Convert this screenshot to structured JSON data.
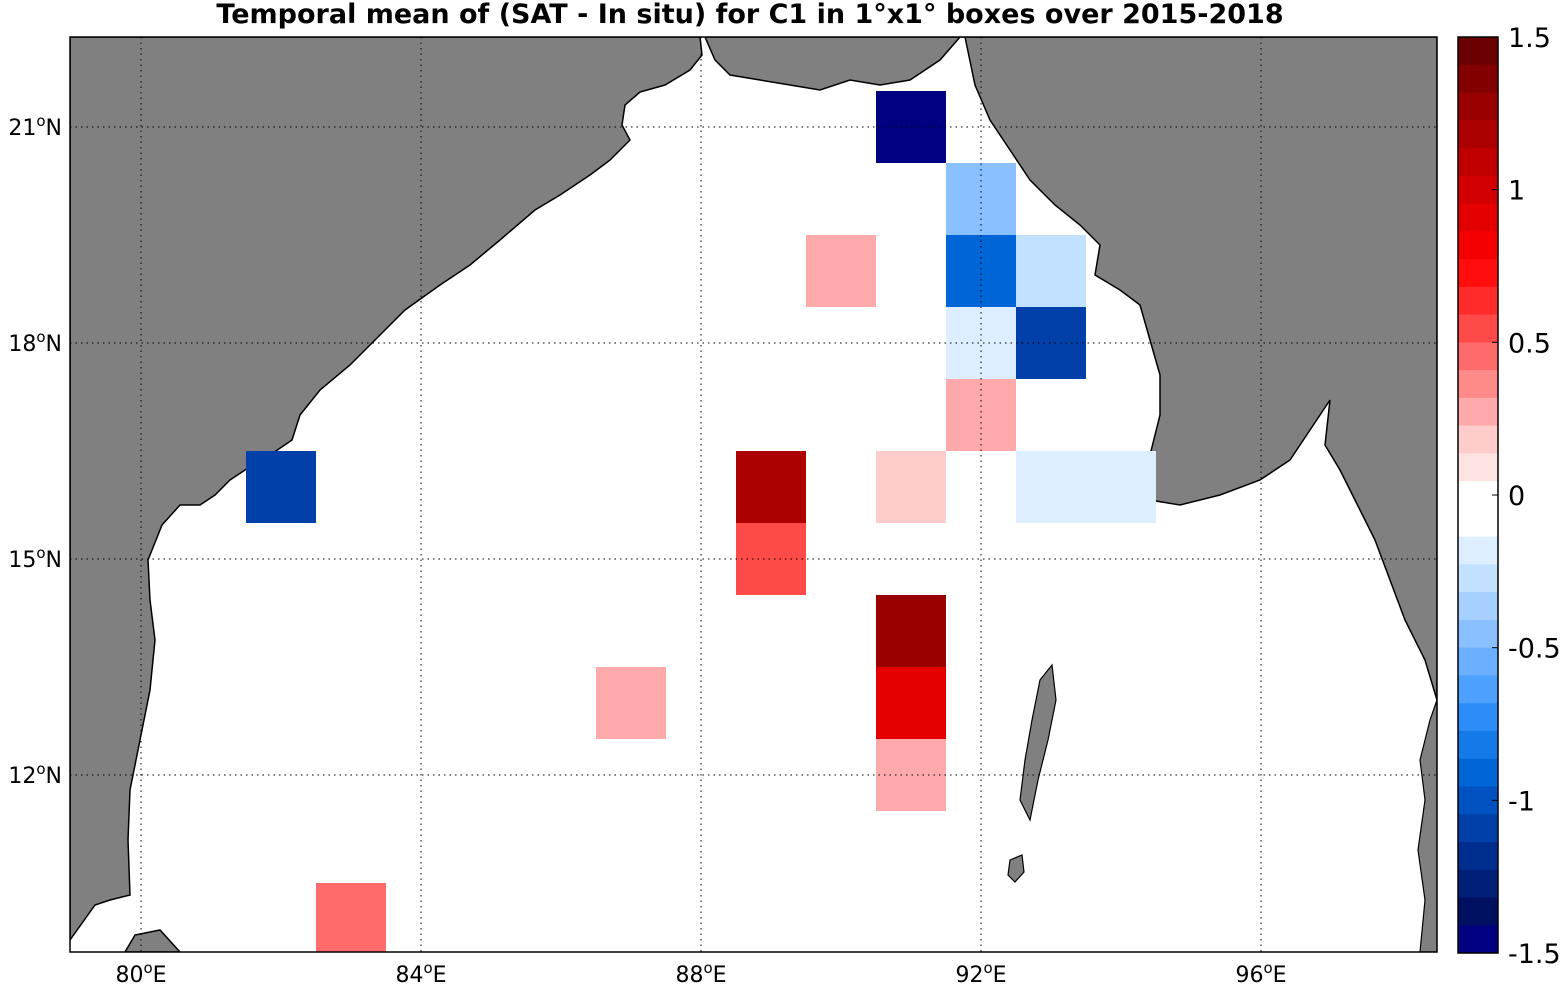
{
  "title": "Temporal mean of (SAT - In situ) for C1 in 1°x1° boxes over 2015-2018",
  "map": {
    "lon_range": [
      79,
      98.5
    ],
    "lat_range": [
      9.5,
      22.3
    ],
    "x_ticks": [
      {
        "value": 80,
        "label": "80",
        "sup": "o",
        "suffix": "E"
      },
      {
        "value": 84,
        "label": "84",
        "sup": "o",
        "suffix": "E"
      },
      {
        "value": 88,
        "label": "88",
        "sup": "o",
        "suffix": "E"
      },
      {
        "value": 92,
        "label": "92",
        "sup": "o",
        "suffix": "E"
      },
      {
        "value": 96,
        "label": "96",
        "sup": "o",
        "suffix": "E"
      }
    ],
    "y_ticks": [
      {
        "value": 21,
        "label": "21",
        "sup": "o",
        "suffix": "N"
      },
      {
        "value": 18,
        "label": "18",
        "sup": "o",
        "suffix": "N"
      },
      {
        "value": 15,
        "label": "15",
        "sup": "o",
        "suffix": "N"
      },
      {
        "value": 12,
        "label": "12",
        "sup": "o",
        "suffix": "N"
      }
    ],
    "grid": "dotted",
    "land_color": "#808080",
    "ocean_color": "#ffffff"
  },
  "chart_data": {
    "type": "heatmap",
    "title": "Temporal mean of (SAT - In situ) for C1 in 1°x1° boxes over 2015-2018",
    "box_size_deg": 1,
    "cells": [
      {
        "lon": 91,
        "lat": 21,
        "value": -1.45
      },
      {
        "lon": 92,
        "lat": 20,
        "value": -0.45
      },
      {
        "lon": 90,
        "lat": 19,
        "value": 0.25
      },
      {
        "lon": 92,
        "lat": 19,
        "value": -0.95
      },
      {
        "lon": 93,
        "lat": 19,
        "value": -0.25
      },
      {
        "lon": 92,
        "lat": 18,
        "value": -0.15
      },
      {
        "lon": 93,
        "lat": 18,
        "value": -1.05
      },
      {
        "lon": 92,
        "lat": 17,
        "value": 0.25
      },
      {
        "lon": 82,
        "lat": 16,
        "value": -1.05
      },
      {
        "lon": 89,
        "lat": 16,
        "value": 1.15
      },
      {
        "lon": 91,
        "lat": 16,
        "value": 0.15
      },
      {
        "lon": 93,
        "lat": 16,
        "value": -0.15
      },
      {
        "lon": 94,
        "lat": 16,
        "value": -0.15
      },
      {
        "lon": 89,
        "lat": 15,
        "value": 0.55
      },
      {
        "lon": 91,
        "lat": 14,
        "value": 1.25
      },
      {
        "lon": 91,
        "lat": 13,
        "value": 0.95
      },
      {
        "lon": 87,
        "lat": 13,
        "value": 0.25
      },
      {
        "lon": 91,
        "lat": 12,
        "value": 0.25
      },
      {
        "lon": 83,
        "lat": 10,
        "value": 0.45
      }
    ],
    "colorbar": {
      "min": -1.5,
      "max": 1.5,
      "levels": 30,
      "ticks": [
        {
          "value": 1.5,
          "label": "1.5"
        },
        {
          "value": 1,
          "label": "1"
        },
        {
          "value": 0.5,
          "label": "0.5"
        },
        {
          "value": 0,
          "label": "0"
        },
        {
          "value": -0.5,
          "label": "-0.5"
        },
        {
          "value": -1,
          "label": "-1"
        },
        {
          "value": -1.5,
          "label": "-1.5"
        }
      ],
      "colors_top_to_bottom": [
        "#6a0000",
        "#820000",
        "#990000",
        "#ad0000",
        "#c00000",
        "#d20000",
        "#e40000",
        "#f50000",
        "#ff0d0d",
        "#ff2b2b",
        "#ff4a4a",
        "#ff6a6a",
        "#ff8a8a",
        "#ffaaaa",
        "#ffcccc",
        "#ffe2e2",
        "#ffffff",
        "#ffffff",
        "#dceeff",
        "#c2e0ff",
        "#a6d0ff",
        "#8ac0ff",
        "#6bb0ff",
        "#4ea0ff",
        "#2c8cf8",
        "#137ae8",
        "#0066d8",
        "#0052c0",
        "#0040a8",
        "#002e90",
        "#002078",
        "#001060",
        "#000080"
      ]
    }
  }
}
